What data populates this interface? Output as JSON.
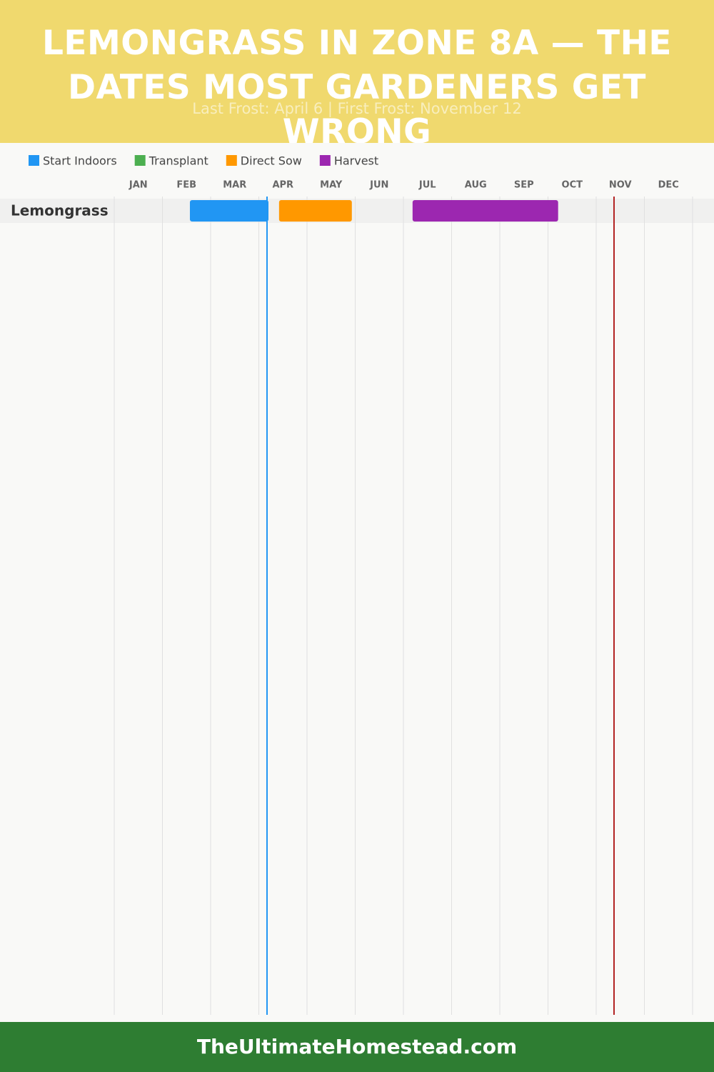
{
  "chart_data": {
    "type": "gantt",
    "title": "LEMONGRASS IN ZONE 8A — THE DATES MOST GARDENERS GET WRONG",
    "subtitle": "Last Frost: April 6 | First Frost: November 12",
    "categories": [
      "JAN",
      "FEB",
      "MAR",
      "APR",
      "MAY",
      "JUN",
      "JUL",
      "AUG",
      "SEP",
      "OCT",
      "NOV",
      "DEC"
    ],
    "xlim": [
      0,
      12
    ],
    "rows": [
      "Lemongrass"
    ],
    "series": [
      {
        "name": "Start Indoors",
        "color": "#2196f3",
        "ranges": [
          [
            1.57,
            3.2
          ]
        ]
      },
      {
        "name": "Transplant",
        "color": "#4caf50",
        "ranges": []
      },
      {
        "name": "Direct Sow",
        "color": "#ff9800",
        "ranges": [
          [
            3.42,
            4.93
          ]
        ]
      },
      {
        "name": "Harvest",
        "color": "#9c27b0",
        "ranges": [
          [
            6.19,
            9.21
          ]
        ]
      }
    ],
    "markers": [
      {
        "value": 3.17,
        "color": "#2196f3"
      },
      {
        "value": 10.37,
        "color": "#b22222"
      }
    ],
    "grid": true
  },
  "footer": "TheUltimateHomestead.com"
}
